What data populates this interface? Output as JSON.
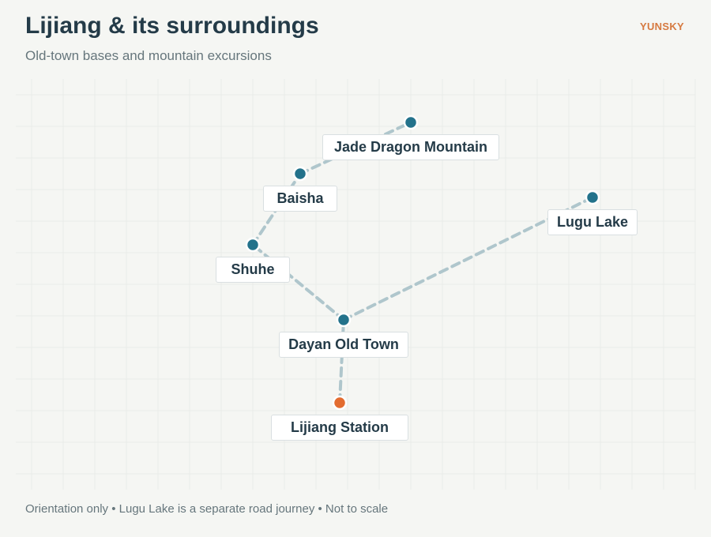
{
  "header": {
    "title": "Lijiang & its surroundings",
    "subtitle": "Old-town bases and mountain excursions",
    "brand": "YUNSKY"
  },
  "places": [
    {
      "id": "jade",
      "name": "Jade Dragon Mountain",
      "kind": "destination"
    },
    {
      "id": "baisha",
      "name": "Baisha",
      "kind": "destination"
    },
    {
      "id": "lugu",
      "name": "Lugu Lake",
      "kind": "destination"
    },
    {
      "id": "shuhe",
      "name": "Shuhe",
      "kind": "destination"
    },
    {
      "id": "dayan",
      "name": "Dayan Old Town",
      "kind": "destination"
    },
    {
      "id": "station",
      "name": "Lijiang Station",
      "kind": "station"
    }
  ],
  "routes": [
    [
      "station",
      "dayan"
    ],
    [
      "dayan",
      "shuhe"
    ],
    [
      "shuhe",
      "baisha"
    ],
    [
      "baisha",
      "jade"
    ],
    [
      "dayan",
      "lugu"
    ]
  ],
  "colors": {
    "destination": "#23728b",
    "station": "#e36c30",
    "route": "#afc6cc",
    "grid": "#e9ece8"
  },
  "footer": {
    "note": "Orientation only • Lugu Lake is a separate road journey • Not to scale"
  }
}
